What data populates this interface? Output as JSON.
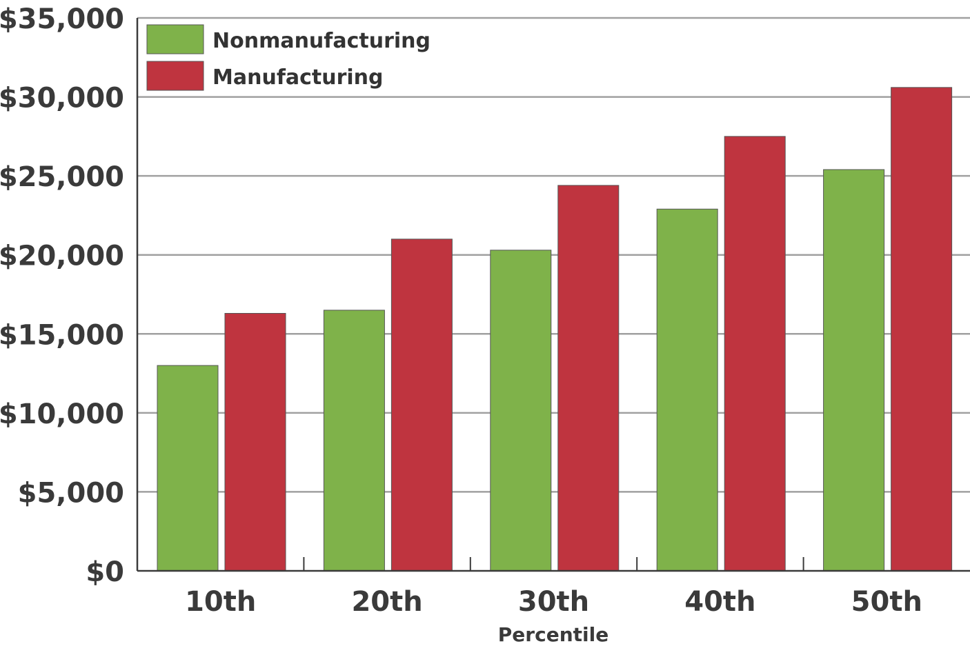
{
  "chart_data": {
    "type": "bar",
    "xlabel": "Percentile",
    "ylabel": "",
    "ylim": [
      0,
      35000
    ],
    "yticks": [
      0,
      5000,
      10000,
      15000,
      20000,
      25000,
      30000,
      35000
    ],
    "ytick_labels": [
      "$0",
      "$5,000",
      "$10,000",
      "$15,000",
      "$20,000",
      "$25,000",
      "$30,000",
      "$35,000"
    ],
    "categories": [
      "10th",
      "20th",
      "30th",
      "40th",
      "50th"
    ],
    "grid": true,
    "legend_position": "top-left",
    "series": [
      {
        "name": "Nonmanufacturing",
        "color": "#7fb24a",
        "values": [
          13000,
          16500,
          20300,
          22900,
          25400
        ]
      },
      {
        "name": "Manufacturing",
        "color": "#bf343f",
        "values": [
          16300,
          21000,
          24400,
          27500,
          30600
        ]
      }
    ]
  }
}
